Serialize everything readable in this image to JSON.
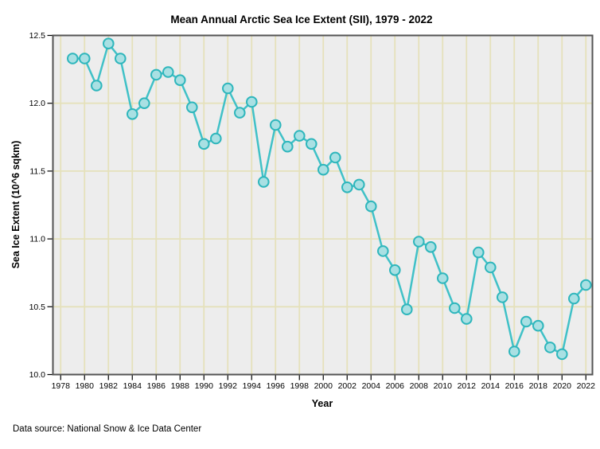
{
  "footer": {
    "text": "Data source: National Snow & Ice Data Center"
  },
  "chart_data": {
    "type": "line",
    "title": "Mean Annual Arctic Sea Ice Extent (SII), 1979 - 2022",
    "xlabel": "Year",
    "ylabel": "Sea Ice Extent (10^6 sqkm)",
    "xlim": [
      1977.35,
      2022.55
    ],
    "ylim": [
      10.0,
      12.5
    ],
    "x_ticks": [
      1978,
      1980,
      1982,
      1984,
      1986,
      1988,
      1990,
      1992,
      1994,
      1996,
      1998,
      2000,
      2002,
      2004,
      2006,
      2008,
      2010,
      2012,
      2014,
      2016,
      2018,
      2020,
      2022
    ],
    "y_ticks": [
      10.0,
      10.5,
      11.0,
      11.5,
      12.0,
      12.5
    ],
    "grid": true,
    "legend": "none",
    "series": [
      {
        "name": "Mean annual sea ice extent",
        "x": [
          1979,
          1980,
          1981,
          1982,
          1983,
          1984,
          1985,
          1986,
          1987,
          1988,
          1989,
          1990,
          1991,
          1992,
          1993,
          1994,
          1995,
          1996,
          1997,
          1998,
          1999,
          2000,
          2001,
          2002,
          2003,
          2004,
          2005,
          2006,
          2007,
          2008,
          2009,
          2010,
          2011,
          2012,
          2013,
          2014,
          2015,
          2016,
          2017,
          2018,
          2019,
          2020,
          2021,
          2022
        ],
        "y": [
          12.33,
          12.33,
          12.13,
          12.44,
          12.33,
          11.92,
          12.0,
          12.21,
          12.23,
          12.17,
          11.97,
          11.7,
          11.74,
          12.11,
          11.93,
          12.01,
          11.42,
          11.84,
          11.68,
          11.76,
          11.7,
          11.51,
          11.6,
          11.38,
          11.4,
          11.24,
          10.91,
          10.77,
          10.48,
          10.98,
          10.94,
          10.71,
          10.49,
          10.41,
          10.9,
          10.79,
          10.57,
          10.17,
          10.39,
          10.36,
          10.2,
          10.15,
          10.56,
          10.66
        ]
      }
    ],
    "colors": {
      "line": "#40C1C7",
      "marker_fill": "#A9E0E3",
      "marker_stroke": "#2EB6BC",
      "plot_background": "#EDEDED",
      "gridline": "#E5E1BB",
      "frame": "#545454",
      "tick": "#000000",
      "page_background": "#FFFFFF"
    }
  }
}
